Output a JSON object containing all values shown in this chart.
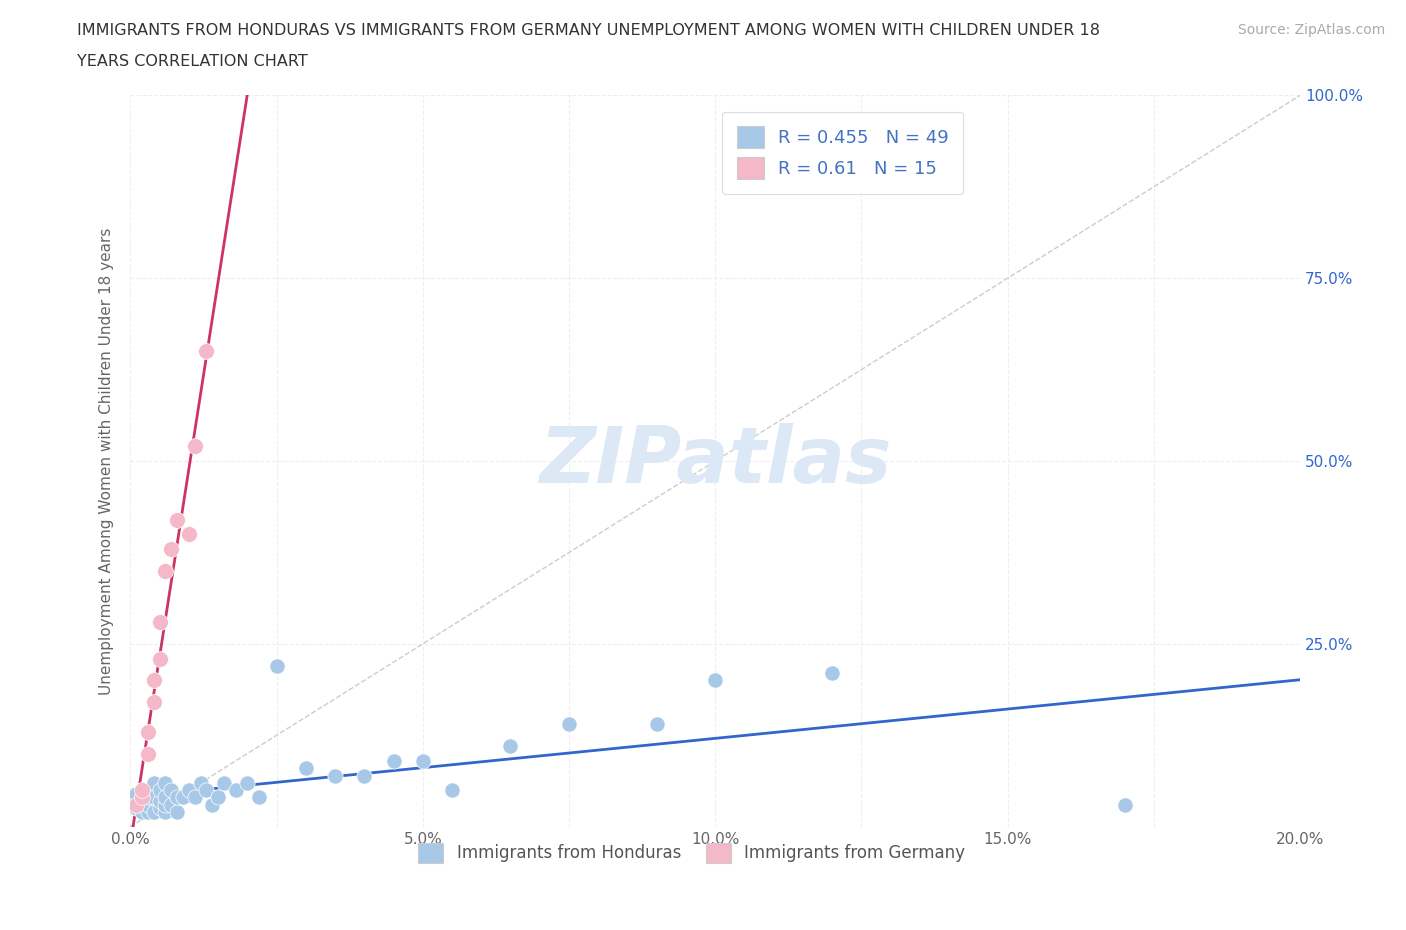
{
  "title_line1": "IMMIGRANTS FROM HONDURAS VS IMMIGRANTS FROM GERMANY UNEMPLOYMENT AMONG WOMEN WITH CHILDREN UNDER 18",
  "title_line2": "YEARS CORRELATION CHART",
  "source_text": "Source: ZipAtlas.com",
  "ylabel": "Unemployment Among Women with Children Under 18 years",
  "xlim": [
    0.0,
    0.2
  ],
  "ylim": [
    0.0,
    1.0
  ],
  "xtick_labels": [
    "0.0%",
    "",
    "5.0%",
    "",
    "10.0%",
    "",
    "15.0%",
    "",
    "20.0%"
  ],
  "xtick_vals": [
    0.0,
    0.025,
    0.05,
    0.075,
    0.1,
    0.125,
    0.15,
    0.175,
    0.2
  ],
  "ytick_labels": [
    "",
    "25.0%",
    "50.0%",
    "75.0%",
    "100.0%"
  ],
  "ytick_vals": [
    0.0,
    0.25,
    0.5,
    0.75,
    1.0
  ],
  "R_honduras": 0.455,
  "N_honduras": 49,
  "R_germany": 0.61,
  "N_germany": 15,
  "color_honduras": "#a8c8e8",
  "color_germany": "#f4b8c8",
  "trendline_color_honduras": "#3366cc",
  "trendline_color_germany": "#cc3366",
  "refline_color": "#cccccc",
  "watermark_color": "#dce8f5",
  "watermark_text": "ZIPatlas",
  "legend_R_color": "#4472c4",
  "grid_color": "#eeeeee",
  "grid_linestyle": "--",
  "background_color": "#ffffff",
  "honduras_x": [
    0.001,
    0.001,
    0.001,
    0.002,
    0.002,
    0.002,
    0.002,
    0.003,
    0.003,
    0.003,
    0.003,
    0.004,
    0.004,
    0.004,
    0.005,
    0.005,
    0.005,
    0.006,
    0.006,
    0.006,
    0.006,
    0.007,
    0.007,
    0.008,
    0.008,
    0.009,
    0.01,
    0.011,
    0.012,
    0.013,
    0.014,
    0.015,
    0.016,
    0.018,
    0.02,
    0.022,
    0.025,
    0.03,
    0.035,
    0.04,
    0.045,
    0.05,
    0.055,
    0.065,
    0.075,
    0.09,
    0.1,
    0.12,
    0.17
  ],
  "honduras_y": [
    0.025,
    0.035,
    0.045,
    0.02,
    0.03,
    0.04,
    0.05,
    0.02,
    0.03,
    0.04,
    0.05,
    0.02,
    0.04,
    0.06,
    0.025,
    0.035,
    0.05,
    0.02,
    0.03,
    0.04,
    0.06,
    0.03,
    0.05,
    0.02,
    0.04,
    0.04,
    0.05,
    0.04,
    0.06,
    0.05,
    0.03,
    0.04,
    0.06,
    0.05,
    0.06,
    0.04,
    0.22,
    0.08,
    0.07,
    0.07,
    0.09,
    0.09,
    0.05,
    0.11,
    0.14,
    0.14,
    0.2,
    0.21,
    0.03
  ],
  "germany_x": [
    0.001,
    0.002,
    0.002,
    0.003,
    0.003,
    0.004,
    0.004,
    0.005,
    0.005,
    0.006,
    0.007,
    0.008,
    0.01,
    0.011,
    0.013
  ],
  "germany_y": [
    0.03,
    0.04,
    0.05,
    0.1,
    0.13,
    0.17,
    0.2,
    0.23,
    0.28,
    0.35,
    0.38,
    0.42,
    0.4,
    0.52,
    0.65
  ],
  "trendline_honduras": {
    "slope": 0.5,
    "intercept": 0.022
  },
  "trendline_germany": {
    "slope": 55.0,
    "intercept": -0.02
  }
}
